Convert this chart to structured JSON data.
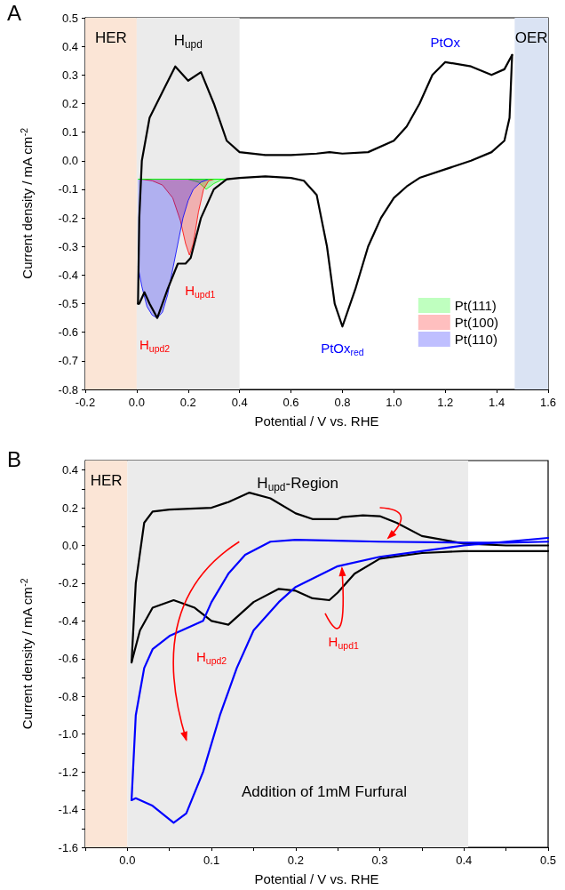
{
  "chart_data": [
    {
      "type": "line",
      "xlabel": "Potential / V vs. RHE",
      "ylabel": "Current density / mA cm$^{-2}$",
      "xlim": [
        -0.2,
        1.6
      ],
      "xticks": [
        -0.2,
        {
          "value": 0,
          "label": "0.0"
        },
        0.2,
        0.4,
        0.6,
        0.8,
        {
          "value": 1,
          "label": "1.0"
        },
        1.2,
        1.4,
        1.6
      ],
      "ylim": [
        -0.8,
        0.5
      ],
      "yticks": [
        0.5,
        0.4,
        0.3,
        0.2,
        0.1,
        {
          "value": 0,
          "label": "0.0"
        },
        -0.1,
        -0.2,
        -0.3,
        -0.4,
        -0.5,
        -0.6,
        -0.7,
        -0.8
      ],
      "legend": "bottom right",
      "ref_lines": [
        {
          "axis": "y",
          "value": -0.065,
          "color": "#00ff00"
        }
      ],
      "bands": [
        {
          "axis": "x",
          "from": -0.2,
          "to": 0.0,
          "label": "HER",
          "color": "#fbe5d6"
        },
        {
          "axis": "x",
          "from": 0.0,
          "to": 0.4,
          "label": "H$_{upd}$",
          "color": "#ebebeb"
        },
        {
          "axis": "x",
          "from": 1.47,
          "to": 1.6,
          "label": "OER",
          "color": "#dae3f3"
        }
      ],
      "annotations": [
        "A",
        {
          "text": "PtOx",
          "x": 1.2,
          "y": 0.345
        },
        {
          "text": "PtOx$_{red}$",
          "x": 0.8,
          "y": -0.58
        },
        {
          "text": "H$_{upd1}$",
          "x": 0.205,
          "y": -0.33
        },
        {
          "text": "H$_{upd2}$",
          "x": 0.08,
          "y": -0.55
        }
      ],
      "series": [
        {
          "type": "area",
          "name": "Pt(111)",
          "color": "#00ff00",
          "x": [
            0.2,
            0.24,
            0.27,
            0.3,
            0.33,
            0.36
          ],
          "values": [
            -0.065,
            -0.075,
            -0.1,
            -0.08,
            -0.067,
            -0.065
          ]
        },
        {
          "type": "area",
          "name": "Pt(100)",
          "color": "#ff0000",
          "x": [
            0.02,
            0.06,
            0.1,
            0.14,
            0.17,
            0.19,
            0.205,
            0.22,
            0.24,
            0.26,
            0.28,
            0.3
          ],
          "values": [
            -0.065,
            -0.07,
            -0.085,
            -0.13,
            -0.21,
            -0.29,
            -0.33,
            -0.29,
            -0.18,
            -0.1,
            -0.07,
            -0.065
          ]
        },
        {
          "type": "area",
          "name": "Pt(110)",
          "color": "#0000ff",
          "x": [
            0.005,
            0.02,
            0.04,
            0.06,
            0.08,
            0.1,
            0.12,
            0.14,
            0.16,
            0.18,
            0.2,
            0.22,
            0.25,
            0.28
          ],
          "values": [
            -0.37,
            -0.44,
            -0.51,
            -0.54,
            -0.55,
            -0.53,
            -0.47,
            -0.38,
            -0.29,
            -0.2,
            -0.14,
            -0.1,
            -0.075,
            -0.065
          ]
        },
        {
          "color": "#000000",
          "x": [
            0.005,
            0.01,
            0.02,
            0.05,
            0.1,
            0.15,
            0.2,
            0.25,
            0.3,
            0.35,
            0.4,
            0.5,
            0.6,
            0.7,
            0.75,
            0.8,
            0.9,
            1.0,
            1.05,
            1.1,
            1.15,
            1.2,
            1.3,
            1.38,
            1.43,
            1.46
          ],
          "values": [
            -0.5,
            -0.2,
            0.0,
            0.15,
            0.24,
            0.33,
            0.28,
            0.31,
            0.2,
            0.07,
            0.03,
            0.02,
            0.02,
            0.025,
            0.03,
            0.025,
            0.03,
            0.07,
            0.12,
            0.2,
            0.3,
            0.345,
            0.33,
            0.3,
            0.32,
            0.37
          ]
        },
        {
          "color": "#000000",
          "x": [
            1.46,
            1.45,
            1.43,
            1.38,
            1.3,
            1.2,
            1.1,
            1.05,
            1.0,
            0.95,
            0.9,
            0.85,
            0.8,
            0.77,
            0.74,
            0.7,
            0.65,
            0.6,
            0.5,
            0.4,
            0.35,
            0.3,
            0.25,
            0.21,
            0.19,
            0.16,
            0.12,
            0.08,
            0.05,
            0.03,
            0.01,
            0.005
          ],
          "values": [
            0.37,
            0.15,
            0.07,
            0.03,
            0.0,
            -0.03,
            -0.06,
            -0.09,
            -0.13,
            -0.2,
            -0.3,
            -0.45,
            -0.58,
            -0.5,
            -0.3,
            -0.12,
            -0.07,
            -0.06,
            -0.055,
            -0.06,
            -0.065,
            -0.1,
            -0.2,
            -0.34,
            -0.36,
            -0.36,
            -0.45,
            -0.55,
            -0.5,
            -0.46,
            -0.5,
            -0.5
          ]
        }
      ]
    },
    {
      "type": "line",
      "xlabel": "Potential / V vs. RHE",
      "ylabel": "Current density / mA cm$^{-2}$",
      "xlim": [
        -0.05,
        0.5
      ],
      "xticks": [
        {
          "value": -0.05,
          "label": null
        },
        {
          "value": 0,
          "label": "0.0"
        },
        {
          "value": 0.05,
          "label": null
        },
        0.1,
        {
          "value": 0.15,
          "label": null
        },
        0.2,
        {
          "value": 0.25,
          "label": null
        },
        0.3,
        {
          "value": 0.35,
          "label": null
        },
        0.4,
        {
          "value": 0.45,
          "label": null
        },
        0.5
      ],
      "ylim": [
        -1.6,
        0.45
      ],
      "yticks": [
        0.4,
        {
          "value": 0.3,
          "label": null
        },
        0.2,
        {
          "value": 0.1,
          "label": null
        },
        {
          "value": 0,
          "label": "0.0"
        },
        {
          "value": -0.1,
          "label": null
        },
        -0.2,
        {
          "value": -0.3,
          "label": null
        },
        -0.4,
        {
          "value": -0.5,
          "label": null
        },
        -0.6,
        {
          "value": -0.7,
          "label": null
        },
        -0.8,
        {
          "value": -0.9,
          "label": null
        },
        {
          "value": -1,
          "label": "-1.0"
        },
        {
          "value": -1.1,
          "label": null
        },
        -1.2,
        {
          "value": -1.3,
          "label": null
        },
        -1.4,
        {
          "value": -1.5,
          "label": null
        },
        -1.6
      ],
      "bands": [
        {
          "axis": "x",
          "from": -0.05,
          "to": 0.0,
          "label": "HER",
          "color": "#fbe5d6"
        },
        {
          "axis": "x",
          "from": 0.0,
          "to": 0.405,
          "label": "H$_{upd}$-Region",
          "color": "#ebebeb"
        }
      ],
      "annotations": [
        "B",
        {
          "text": "H$_{upd1}$",
          "x": 0.24,
          "y": -0.29
        },
        {
          "text": "H$_{upd2}$",
          "x": 0.12,
          "y": -0.42
        },
        "Addition of 1mM Furfural"
      ],
      "series": [
        {
          "color": "#000000",
          "x": [
            0.005,
            0.01,
            0.02,
            0.03,
            0.05,
            0.1,
            0.12,
            0.145,
            0.17,
            0.2,
            0.22,
            0.25,
            0.255,
            0.28,
            0.3,
            0.32,
            0.35,
            0.4,
            0.45,
            0.5
          ],
          "values": [
            -0.62,
            -0.2,
            0.12,
            0.18,
            0.19,
            0.2,
            0.23,
            0.28,
            0.25,
            0.17,
            0.14,
            0.14,
            0.15,
            0.16,
            0.155,
            0.12,
            0.05,
            0.01,
            0.0,
            0.0
          ]
        },
        {
          "color": "#000000",
          "x": [
            0.5,
            0.4,
            0.35,
            0.3,
            0.27,
            0.25,
            0.24,
            0.22,
            0.2,
            0.18,
            0.15,
            0.12,
            0.1,
            0.08,
            0.055,
            0.03,
            0.015,
            0.005
          ],
          "values": [
            -0.03,
            -0.03,
            -0.04,
            -0.07,
            -0.15,
            -0.25,
            -0.29,
            -0.28,
            -0.24,
            -0.23,
            -0.3,
            -0.42,
            -0.4,
            -0.33,
            -0.29,
            -0.33,
            -0.45,
            -0.62
          ]
        },
        {
          "color": "#0000ff",
          "x": [
            0.005,
            0.01,
            0.03,
            0.055,
            0.07,
            0.09,
            0.11,
            0.13,
            0.15,
            0.18,
            0.2,
            0.25,
            0.3,
            0.35,
            0.4,
            0.45,
            0.5
          ],
          "values": [
            -1.35,
            -1.34,
            -1.38,
            -1.47,
            -1.42,
            -1.2,
            -0.9,
            -0.65,
            -0.45,
            -0.3,
            -0.22,
            -0.11,
            -0.06,
            -0.03,
            0.0,
            0.02,
            0.04
          ]
        },
        {
          "color": "#0000ff",
          "x": [
            0.5,
            0.45,
            0.4,
            0.3,
            0.25,
            0.2,
            0.17,
            0.14,
            0.12,
            0.1,
            0.09,
            0.07,
            0.05,
            0.03,
            0.02,
            0.01,
            0.005
          ],
          "values": [
            0.02,
            0.015,
            0.015,
            0.02,
            0.025,
            0.03,
            0.02,
            -0.05,
            -0.15,
            -0.3,
            -0.4,
            -0.44,
            -0.48,
            -0.55,
            -0.65,
            -0.9,
            -1.35
          ]
        }
      ]
    }
  ]
}
